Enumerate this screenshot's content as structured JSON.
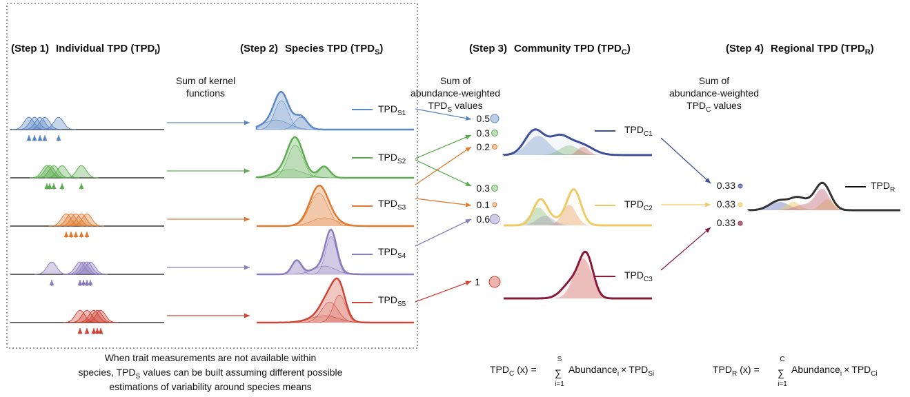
{
  "steps": [
    {
      "number": "(Step 1)",
      "title": "Individual TPD (TPD",
      "subscript": "I",
      "close": ")"
    },
    {
      "number": "(Step 2)",
      "title": "Species TPD (TPD",
      "subscript": "S",
      "close": ")"
    },
    {
      "number": "(Step 3)",
      "title": "Community TPD (TPD",
      "subscript": "C",
      "close": ")"
    },
    {
      "number": "(Step 4)",
      "title": "Regional TPD (TPD",
      "subscript": "R",
      "close": ")"
    }
  ],
  "kernel_label": [
    "Sum of kernel",
    "functions"
  ],
  "species_weight_label": {
    "lines": [
      "Sum of",
      "abundance-weighted"
    ],
    "base": "TPD",
    "sub": "S",
    "end": "values"
  },
  "community_weight_label": {
    "lines": [
      "Sum of",
      "abundance-weighted"
    ],
    "base": "TPD",
    "sub": "C",
    "end": "values"
  },
  "species": [
    {
      "base": "TPD",
      "sub": "S1"
    },
    {
      "base": "TPD",
      "sub": "S2"
    },
    {
      "base": "TPD",
      "sub": "S3"
    },
    {
      "base": "TPD",
      "sub": "S4"
    },
    {
      "base": "TPD",
      "sub": "S5"
    }
  ],
  "community_weights": [
    "0.5",
    "0.3",
    "0.2",
    "0.3",
    "0.1",
    "0.6",
    "1"
  ],
  "communities": [
    {
      "base": "TPD",
      "sub": "C1"
    },
    {
      "base": "TPD",
      "sub": "C2"
    },
    {
      "base": "TPD",
      "sub": "C3"
    }
  ],
  "regional_weights": [
    "0.33",
    "0.33",
    "0.33"
  ],
  "regional": {
    "base": "TPD",
    "sub": "R"
  },
  "footnote": {
    "line1": "When trait measurements are not available within",
    "line2a": "species, TPD",
    "line2sub": "S",
    "line2b": "values can be built assuming different possible",
    "line3": "estimations of variability around species means"
  },
  "formula_c": {
    "lhs": "TPD",
    "lhs_sub": "C",
    "arg": "(x) =",
    "sigma": "∑",
    "upper": "S",
    "lower": "i=1",
    "term": "Abundance",
    "term_sub": "i",
    "times": "×",
    "rhs": "TPD",
    "rhs_sub": "Si"
  },
  "formula_r": {
    "lhs": "TPD",
    "lhs_sub": "R",
    "arg": "(x) =",
    "sigma": "∑",
    "upper": "C",
    "lower": "i=1",
    "term": "Abundance",
    "term_sub": "i",
    "times": "×",
    "rhs": "TPD",
    "rhs_sub": "Ci"
  }
}
